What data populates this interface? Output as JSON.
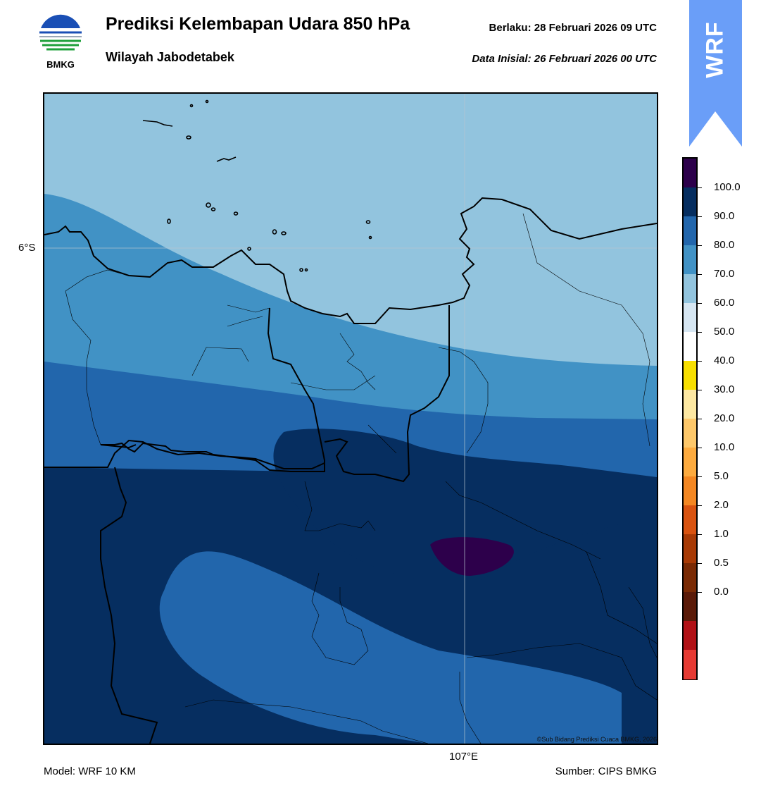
{
  "header": {
    "title": "Prediksi Kelembapan Udara 850 hPa",
    "subtitle": "Wilayah Jabodetabek",
    "valid_label": "Berlaku:  28 Februari 2026 09 UTC",
    "init_label": "Data Inisial:  26 Februari 2026 00 UTC"
  },
  "logo": {
    "text": "BMKG",
    "icon": "bmkg-logo-icon"
  },
  "badge": {
    "text": "WRF",
    "color": "#6a9ef8"
  },
  "map": {
    "lat_label": "6°S",
    "lon_label": "107°E",
    "credit": "©Sub Bidang Prediksi Cuaca BMKG, 2026",
    "fill_colors": {
      "60_70": "#92c4de",
      "70_80": "#4192c5",
      "80_90": "#2266ac",
      "90_100": "#062e60",
      "100_plus": "#2d004b"
    }
  },
  "colorbar": {
    "labels": [
      "100.0",
      "90.0",
      "80.0",
      "70.0",
      "60.0",
      "50.0",
      "40.0",
      "30.0",
      "20.0",
      "10.0",
      "5.0",
      "2.0",
      "1.0",
      "0.5",
      "0.0"
    ],
    "colors_top_to_bottom": [
      "#2d004b",
      "#062e60",
      "#2266ac",
      "#4192c5",
      "#92c4de",
      "#d6e6f2",
      "#ffffff",
      "#f7df00",
      "#fde8a2",
      "#fec86a",
      "#fdab3f",
      "#f48722",
      "#d95310",
      "#a83a05",
      "#7a2a04",
      "#5a1a08",
      "#b11116",
      "#e63a33"
    ]
  },
  "footer": {
    "model": "Model: WRF 10 KM",
    "source": "Sumber: CIPS BMKG"
  }
}
